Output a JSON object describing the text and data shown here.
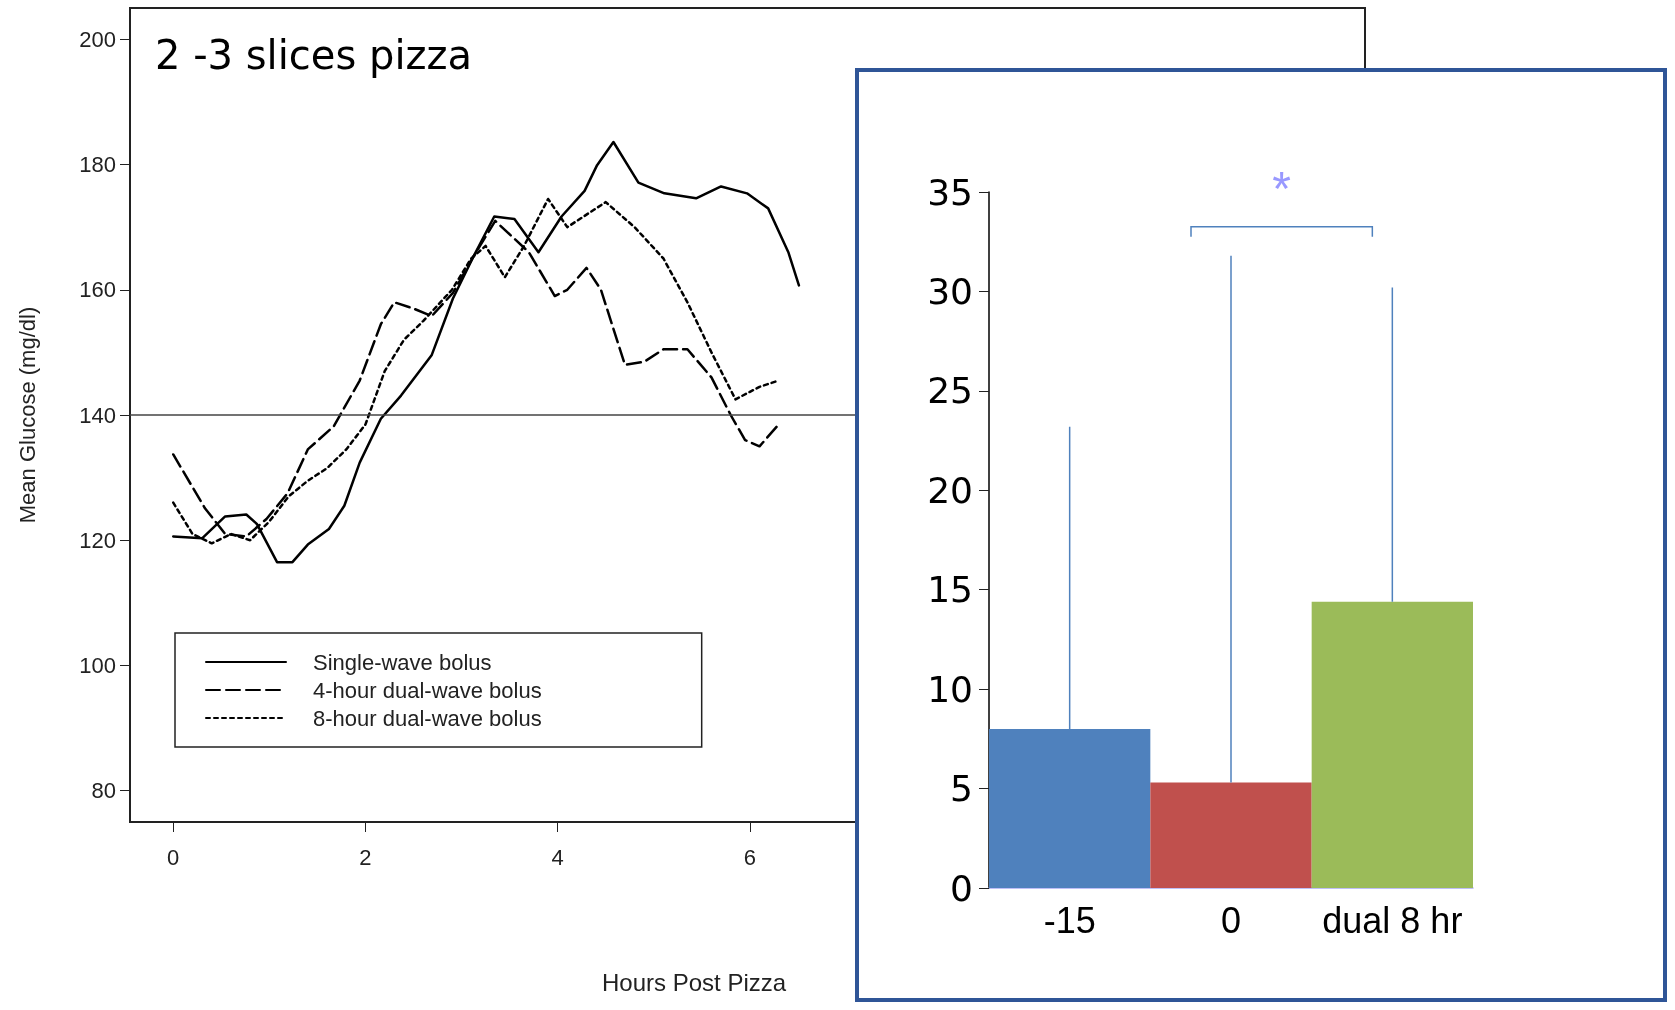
{
  "chart_data": [
    {
      "type": "line",
      "title": "2 -3 slices pizza",
      "xlabel": "Hours Post Pizza",
      "ylabel": "Mean Glucose (mg/dl)",
      "xlim": [
        -0.45,
        12.4
      ],
      "ylim": [
        75,
        205
      ],
      "xticks": [
        0,
        2,
        4,
        6
      ],
      "yticks": [
        80,
        100,
        120,
        140,
        160,
        180,
        200
      ],
      "grid": false,
      "legend": "bottom left",
      "marker": "none",
      "ref_lines": [
        {
          "axis": "y",
          "value": 140,
          "color": "#444444"
        }
      ],
      "series": [
        {
          "name": "Single-wave bolus",
          "color": "#000000",
          "line_style": "solid",
          "x": [
            0,
            0.3,
            0.54,
            0.76,
            0.87,
            1.08,
            1.24,
            1.4,
            1.62,
            1.78,
            1.94,
            2.16,
            2.37,
            2.69,
            2.91,
            3.12,
            3.34,
            3.55,
            3.8,
            4.04,
            4.28,
            4.41,
            4.58,
            4.84,
            5.11,
            5.44,
            5.7,
            5.97,
            6.19,
            6.4,
            6.51
          ],
          "values": [
            120.6,
            120.3,
            123.8,
            124.1,
            122.6,
            116.5,
            116.5,
            119.3,
            121.8,
            125.5,
            132.4,
            139.4,
            143.1,
            149.6,
            158.6,
            165.2,
            171.7,
            171.3,
            166,
            171.7,
            175.8,
            179.9,
            183.6,
            177.1,
            175.4,
            174.6,
            176.5,
            175.4,
            173,
            166,
            160.7
          ]
        },
        {
          "name": "4-hour dual-wave bolus",
          "color": "#000000",
          "line_style": "dashed",
          "x": [
            0,
            0.33,
            0.54,
            0.76,
            0.97,
            1.19,
            1.4,
            1.67,
            1.94,
            2.16,
            2.3,
            2.5,
            2.69,
            2.91,
            3.12,
            3.35,
            3.7,
            3.97,
            4.1,
            4.3,
            4.45,
            4.7,
            4.9,
            5.1,
            5.35,
            5.6,
            5.8,
            5.95,
            6.1,
            6.3
          ],
          "values": [
            133.7,
            125.1,
            121,
            120.6,
            123.4,
            127.5,
            134.5,
            138.2,
            145.5,
            154.5,
            158,
            157,
            155.8,
            159.5,
            165.2,
            171,
            166,
            159,
            160,
            163.5,
            160,
            148,
            148.5,
            150.5,
            150.5,
            146,
            140,
            136,
            135,
            138.5
          ]
        },
        {
          "name": "8-hour dual-wave bolus",
          "color": "#000000",
          "line_style": "dotted",
          "x": [
            0,
            0.2,
            0.4,
            0.6,
            0.8,
            1,
            1.2,
            1.4,
            1.6,
            1.8,
            2,
            2.2,
            2.4,
            2.6,
            2.9,
            3.1,
            3.25,
            3.45,
            3.65,
            3.9,
            4.1,
            4.5,
            4.8,
            5.1,
            5.35,
            5.6,
            5.85,
            6.1,
            6.3
          ],
          "values": [
            126,
            121,
            119.5,
            121,
            120,
            123,
            127,
            129.5,
            131.5,
            134.5,
            138.5,
            147,
            152,
            155,
            160,
            165,
            167,
            162,
            167,
            174.5,
            170,
            174,
            170,
            165,
            158,
            150,
            142.5,
            144.5,
            145.5
          ]
        }
      ]
    },
    {
      "type": "bar",
      "categories": [
        "-15",
        "0",
        "dual 8 hr"
      ],
      "values": [
        8,
        5.3,
        14.4
      ],
      "colors": [
        "#4f81bd",
        "#c0504d",
        "#9bbb59"
      ],
      "errors": [
        [
          8,
          23.2
        ],
        [
          5.3,
          31.8
        ],
        [
          14.4,
          30.2
        ]
      ],
      "ylim": [
        0,
        35
      ],
      "yticks": [
        0,
        5,
        10,
        15,
        20,
        25,
        30,
        35
      ],
      "grid": false,
      "annotations": [
        "*"
      ]
    }
  ]
}
